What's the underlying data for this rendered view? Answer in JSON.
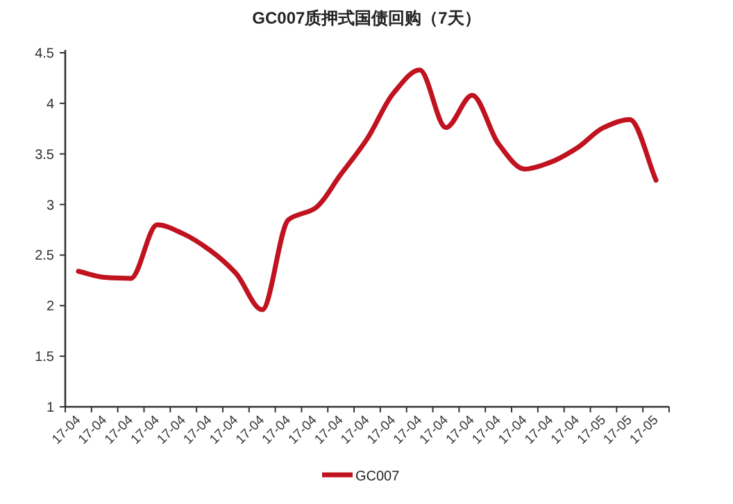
{
  "chart_data": {
    "type": "line",
    "title": "GC007质押式国债回购（7天）",
    "categories": [
      "17-04",
      "17-04",
      "17-04",
      "17-04",
      "17-04",
      "17-04",
      "17-04",
      "17-04",
      "17-04",
      "17-04",
      "17-04",
      "17-04",
      "17-04",
      "17-04",
      "17-04",
      "17-04",
      "17-04",
      "17-04",
      "17-04",
      "17-04",
      "17-05",
      "17-05",
      "17-05"
    ],
    "series": [
      {
        "name": "GC007",
        "color": "#c0121f",
        "values": [
          2.34,
          2.28,
          2.27,
          2.8,
          2.71,
          2.55,
          2.32,
          1.96,
          2.85,
          2.96,
          3.3,
          3.65,
          4.1,
          4.33,
          3.76,
          4.08,
          3.6,
          3.35,
          3.42,
          3.56,
          3.76,
          3.84,
          3.24
        ]
      }
    ],
    "ylim": [
      1,
      4.5
    ],
    "yticks": [
      1,
      1.5,
      2,
      2.5,
      3,
      3.5,
      4,
      4.5
    ],
    "legend": "bottom"
  }
}
